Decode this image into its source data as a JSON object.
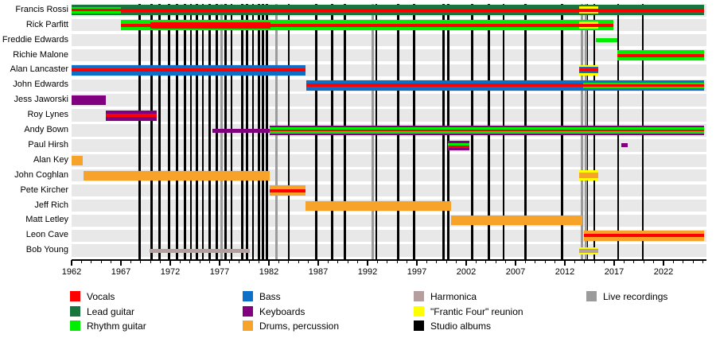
{
  "chart_data": {
    "type": "timeline",
    "title": "",
    "x_axis": {
      "min": 1962,
      "max": 2026.3,
      "major_ticks": [
        1962,
        1967,
        1972,
        1977,
        1982,
        1987,
        1992,
        1997,
        2002,
        2007,
        2012,
        2017,
        2022
      ],
      "minor_tick_interval": 1,
      "grid": false
    },
    "colors": {
      "vocals": "#fe0000",
      "lead": "#17753e",
      "rhythm": "#00ee00",
      "bass": "#0d70c8",
      "keys": "#800080",
      "drums": "#f7a229",
      "harm": "#b59e9e",
      "frantic": "#ffff00",
      "studio": "#000000",
      "live": "#9b9b9b",
      "row_band": "#e8e8e8"
    },
    "legend": {
      "columns": [
        [
          {
            "label": "Vocals",
            "color_key": "vocals"
          },
          {
            "label": "Lead guitar",
            "color_key": "lead"
          },
          {
            "label": "Rhythm guitar",
            "color_key": "rhythm"
          }
        ],
        [
          {
            "label": "Bass",
            "color_key": "bass"
          },
          {
            "label": "Keyboards",
            "color_key": "keys"
          },
          {
            "label": "Drums, percussion",
            "color_key": "drums"
          }
        ],
        [
          {
            "label": "Harmonica",
            "color_key": "harm"
          },
          {
            "label": "\"Frantic Four\" reunion",
            "color_key": "frantic"
          },
          {
            "label": "Studio albums",
            "color_key": "studio"
          }
        ],
        [
          {
            "label": "Live recordings",
            "color_key": "live"
          }
        ]
      ]
    },
    "studio_albums": [
      1968.9,
      1970.1,
      1970.9,
      1971.9,
      1972.7,
      1973.5,
      1974.1,
      1974.7,
      1975.3,
      1976.0,
      1976.7,
      1977.6,
      1978.2,
      1979.3,
      1979.8,
      1980.4,
      1981.0,
      1981.4,
      1981.8,
      1984.0,
      1986.8,
      1988.4,
      1989.7,
      1992.9,
      1995.1,
      1996.7,
      1999.7,
      2000.2,
      2002.6,
      2004.3,
      2005.8,
      2008.0,
      2011.7,
      2014.2,
      2015.0,
      2017.4,
      2019.9
    ],
    "live_recordings": [
      1977.2,
      1982.8,
      1992.5,
      2013.75,
      2014.1
    ],
    "members": [
      {
        "name": "Francis Rossi",
        "segments": [
          {
            "start": 1962.0,
            "end": 1967.0,
            "stripes": [
              [
                "lead",
                2.5
              ],
              [
                "rhythm",
                2.5
              ],
              [
                "vocals",
                3
              ],
              [
                "rhythm",
                2.5
              ],
              [
                "lead",
                2.5
              ]
            ]
          },
          {
            "start": 1967.0,
            "end": 2013.45,
            "stripes": [
              [
                "lead",
                4.5
              ],
              [
                "vocals",
                4
              ],
              [
                "lead",
                4.5
              ]
            ]
          },
          {
            "start": 2013.45,
            "end": 2015.35,
            "stripes": [
              [
                "lead",
                2
              ],
              [
                "frantic",
                2.5
              ],
              [
                "vocals",
                4
              ],
              [
                "frantic",
                2.5
              ],
              [
                "lead",
                2
              ]
            ]
          },
          {
            "start": 2015.35,
            "end": 2026.15,
            "stripes": [
              [
                "lead",
                4.5
              ],
              [
                "vocals",
                4
              ],
              [
                "lead",
                4.5
              ]
            ]
          }
        ]
      },
      {
        "name": "Rick Parfitt",
        "segments": [
          {
            "start": 1967.0,
            "end": 1970.0,
            "stripes": [
              [
                "rhythm",
                4.5
              ],
              [
                "vocals",
                4
              ],
              [
                "rhythm",
                4.5
              ]
            ]
          },
          {
            "start": 1970.0,
            "end": 1982.2,
            "stripes": [
              [
                "rhythm",
                2.5
              ],
              [
                "vocals",
                8
              ],
              [
                "rhythm",
                2.5
              ]
            ]
          },
          {
            "start": 1982.2,
            "end": 2013.45,
            "stripes": [
              [
                "rhythm",
                4.5
              ],
              [
                "vocals",
                4
              ],
              [
                "rhythm",
                4.5
              ]
            ]
          },
          {
            "start": 2013.45,
            "end": 2015.35,
            "stripes": [
              [
                "rhythm",
                2
              ],
              [
                "frantic",
                2.5
              ],
              [
                "vocals",
                4
              ],
              [
                "frantic",
                2.5
              ],
              [
                "rhythm",
                2
              ]
            ]
          },
          {
            "start": 2015.35,
            "end": 2016.9,
            "stripes": [
              [
                "rhythm",
                4.5
              ],
              [
                "vocals",
                4
              ],
              [
                "rhythm",
                4.5
              ]
            ]
          }
        ]
      },
      {
        "name": "Freddie Edwards",
        "segments": [
          {
            "start": 2015.15,
            "end": 2017.3,
            "stripes": [
              [
                "rhythm",
                5.5
              ]
            ]
          }
        ]
      },
      {
        "name": "Richie Malone",
        "segments": [
          {
            "start": 2017.3,
            "end": 2026.15,
            "stripes": [
              [
                "rhythm",
                4.5
              ],
              [
                "vocals",
                4
              ],
              [
                "rhythm",
                4.5
              ]
            ]
          }
        ]
      },
      {
        "name": "Alan Lancaster",
        "segments": [
          {
            "start": 1962.0,
            "end": 1985.7,
            "stripes": [
              [
                "bass",
                4.5
              ],
              [
                "vocals",
                4
              ],
              [
                "bass",
                4.5
              ]
            ]
          },
          {
            "start": 2013.45,
            "end": 2015.35,
            "stripes": [
              [
                "frantic",
                2.5
              ],
              [
                "bass",
                2
              ],
              [
                "vocals",
                4
              ],
              [
                "bass",
                2
              ],
              [
                "frantic",
                2.5
              ]
            ]
          }
        ]
      },
      {
        "name": "John Edwards",
        "segments": [
          {
            "start": 1985.8,
            "end": 2013.85,
            "stripes": [
              [
                "bass",
                4.5
              ],
              [
                "vocals",
                4
              ],
              [
                "bass",
                4.5
              ]
            ]
          },
          {
            "start": 2013.85,
            "end": 2026.15,
            "stripes": [
              [
                "bass",
                3
              ],
              [
                "rhythm",
                2
              ],
              [
                "vocals",
                3
              ],
              [
                "rhythm",
                2
              ],
              [
                "bass",
                3
              ]
            ]
          }
        ]
      },
      {
        "name": "Jess Jaworski",
        "segments": [
          {
            "start": 1962.0,
            "end": 1965.5,
            "stripes": [
              [
                "keys",
                12
              ]
            ]
          }
        ]
      },
      {
        "name": "Roy Lynes",
        "segments": [
          {
            "start": 1965.5,
            "end": 1970.6,
            "stripes": [
              [
                "keys",
                4.5
              ],
              [
                "vocals",
                4
              ],
              [
                "keys",
                4.5
              ]
            ]
          }
        ]
      },
      {
        "name": "Andy Bown",
        "segments": [
          {
            "start": 1976.3,
            "end": 1982.1,
            "stripes": [
              [
                "keys",
                5
              ]
            ]
          },
          {
            "start": 1982.1,
            "end": 2026.15,
            "stripes": [
              [
                "keys",
                2.6
              ],
              [
                "rhythm",
                2.6
              ],
              [
                "vocals",
                2.6
              ],
              [
                "rhythm",
                2.6
              ],
              [
                "keys",
                2.6
              ]
            ]
          }
        ]
      },
      {
        "name": "Paul Hirsh",
        "segments": [
          {
            "start": 2000.15,
            "end": 2002.3,
            "stripes": [
              [
                "keys",
                3
              ],
              [
                "rhythm",
                3.5
              ],
              [
                "vocals",
                2.5
              ],
              [
                "keys",
                3
              ]
            ]
          },
          {
            "start": 2017.7,
            "end": 2018.35,
            "stripes": [
              [
                "keys",
                5
              ]
            ]
          }
        ]
      },
      {
        "name": "Alan Key",
        "segments": [
          {
            "start": 1962.0,
            "end": 1963.1,
            "stripes": [
              [
                "drums",
                12
              ]
            ]
          }
        ]
      },
      {
        "name": "John Coghlan",
        "segments": [
          {
            "start": 1963.2,
            "end": 1982.1,
            "stripes": [
              [
                "drums",
                12
              ]
            ]
          },
          {
            "start": 2013.45,
            "end": 2015.35,
            "stripes": [
              [
                "frantic",
                3
              ],
              [
                "drums",
                7
              ],
              [
                "frantic",
                3
              ]
            ]
          }
        ]
      },
      {
        "name": "Pete Kircher",
        "segments": [
          {
            "start": 1982.1,
            "end": 1985.7,
            "stripes": [
              [
                "drums",
                4.5
              ],
              [
                "vocals",
                4
              ],
              [
                "drums",
                4.5
              ]
            ]
          }
        ]
      },
      {
        "name": "Jeff Rich",
        "segments": [
          {
            "start": 1985.7,
            "end": 2000.5,
            "stripes": [
              [
                "drums",
                12
              ]
            ]
          }
        ]
      },
      {
        "name": "Matt Letley",
        "segments": [
          {
            "start": 2000.5,
            "end": 2013.8,
            "stripes": [
              [
                "drums",
                12
              ]
            ]
          }
        ]
      },
      {
        "name": "Leon Cave",
        "segments": [
          {
            "start": 2013.9,
            "end": 2026.15,
            "stripes": [
              [
                "drums",
                4.5
              ],
              [
                "vocals",
                4
              ],
              [
                "drums",
                4.5
              ]
            ]
          }
        ]
      },
      {
        "name": "Bob Young",
        "segments": [
          {
            "start": 1969.9,
            "end": 1980.1,
            "stripes": [
              [
                "harm",
                5
              ]
            ]
          },
          {
            "start": 2013.45,
            "end": 2015.35,
            "stripes": [
              [
                "frantic",
                2.2
              ],
              [
                "harm",
                5
              ],
              [
                "frantic",
                2.2
              ]
            ]
          }
        ]
      }
    ]
  }
}
